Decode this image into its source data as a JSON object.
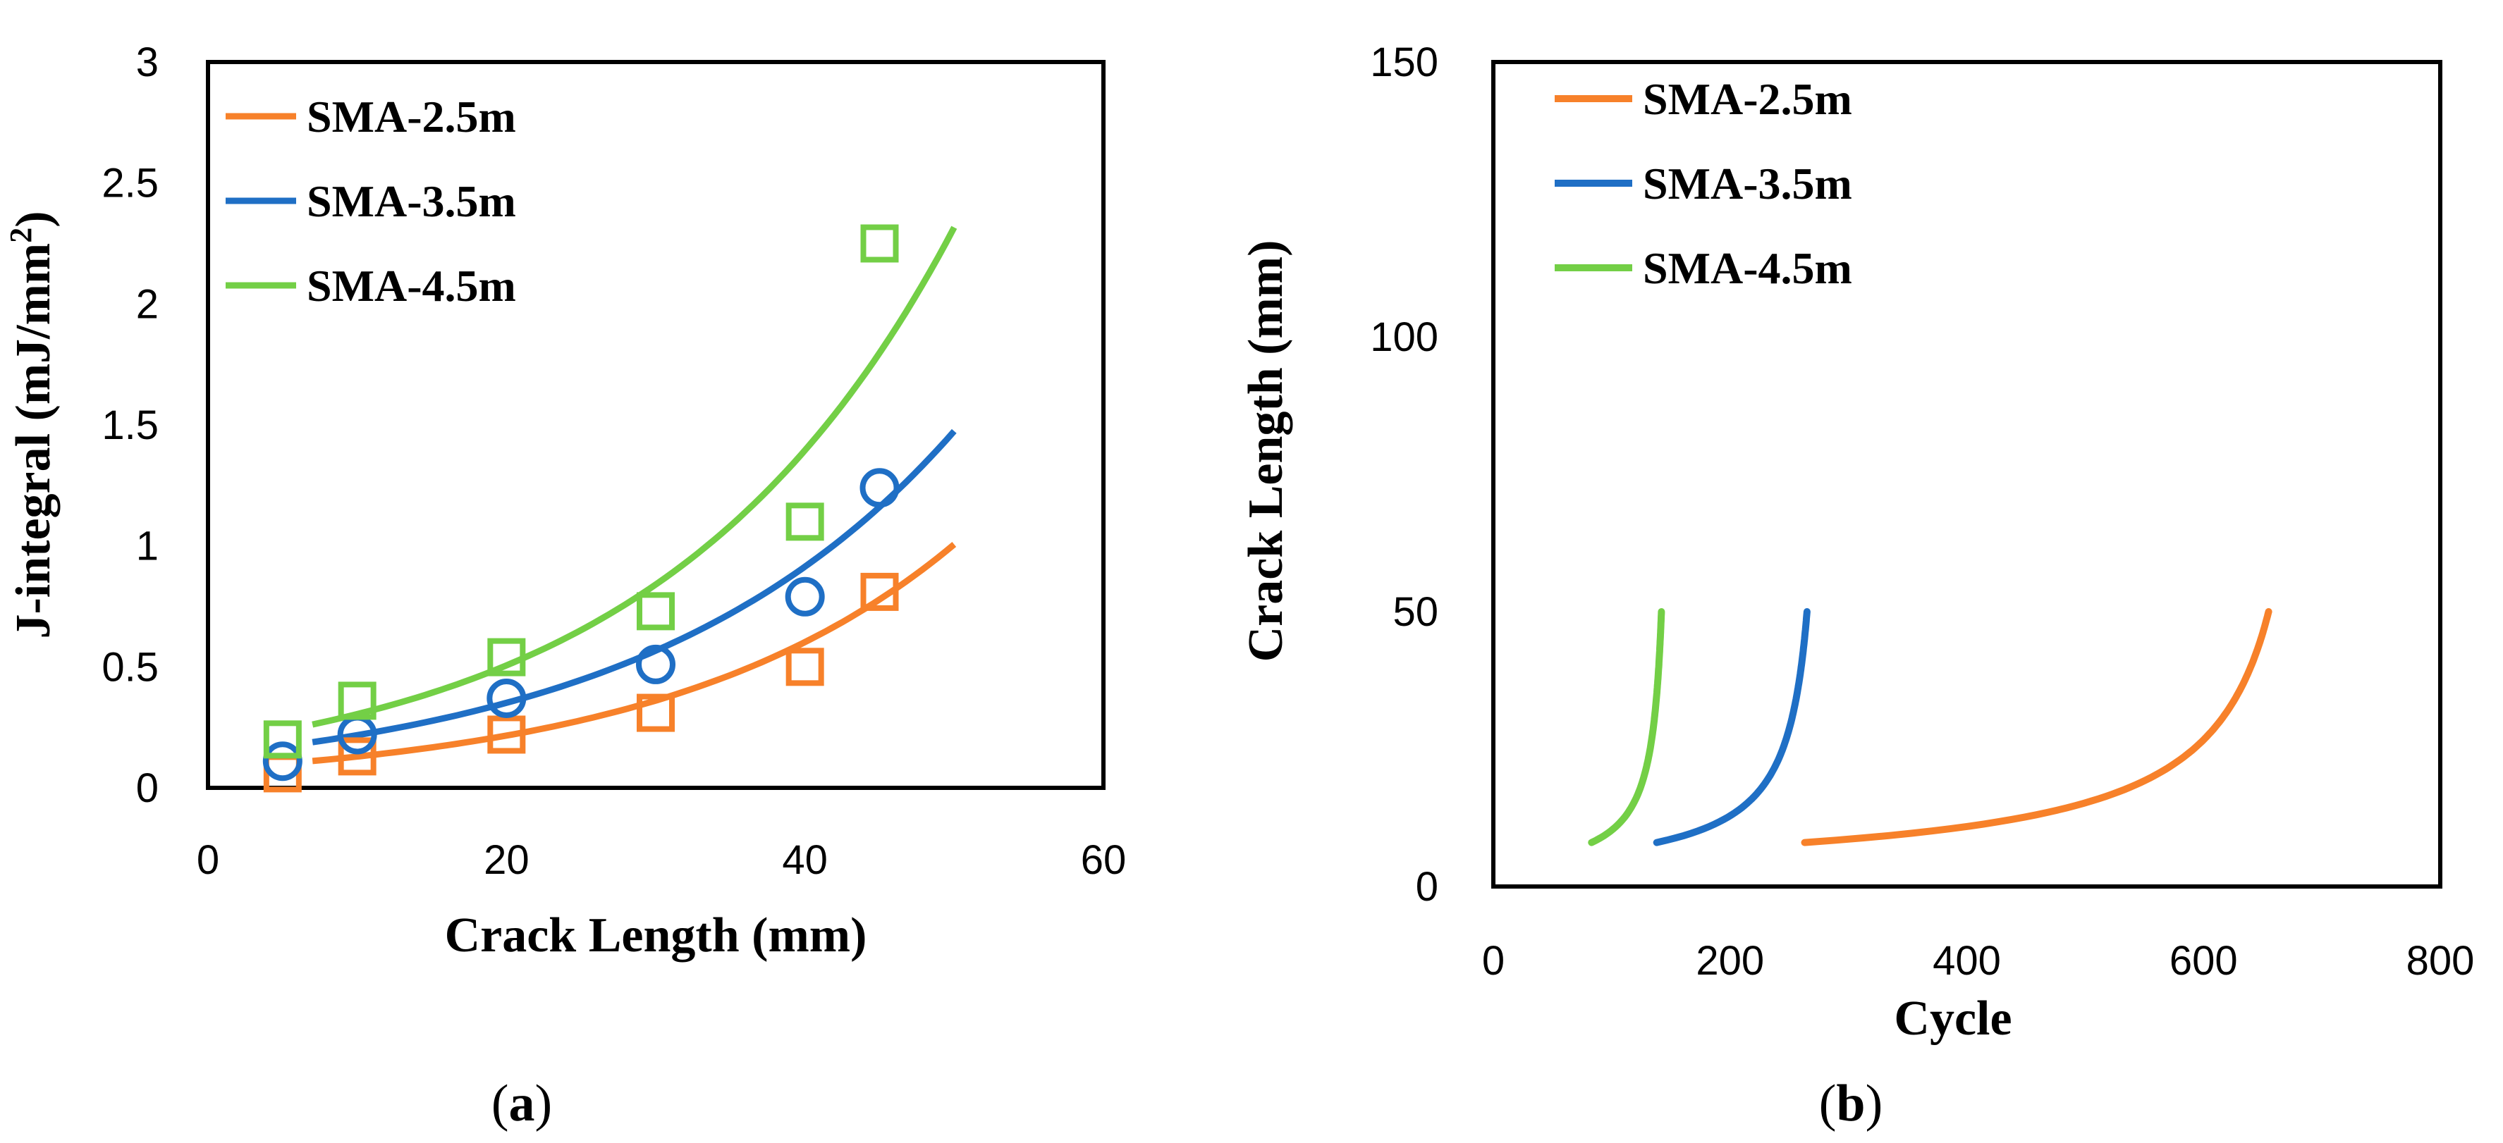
{
  "colors": {
    "orange": "#F7812A",
    "blue": "#1F6FC5",
    "green": "#73CF46"
  },
  "chart_data": [
    {
      "id": "a",
      "type": "scatter",
      "caption_letter": "a",
      "xlabel": "Crack Length (mm)",
      "ylabel": "J-integral (mJ/mm",
      "ylabel_sup": "2",
      "ylabel_close": ")",
      "xlim": [
        0,
        60
      ],
      "ylim": [
        0,
        3
      ],
      "xticks": [
        "0",
        "20",
        "40",
        "60"
      ],
      "xtick_values": [
        0,
        20,
        40,
        60
      ],
      "yticks": [
        "0",
        "0.5",
        "1",
        "1.5",
        "2",
        "2.5",
        "3"
      ],
      "ytick_values": [
        0,
        0.5,
        1,
        1.5,
        2,
        2.5,
        3
      ],
      "legend_position": "top-left",
      "series": [
        {
          "name": "SMA-2.5m",
          "color": "orange",
          "marker": "square",
          "points": [
            [
              5,
              0.06
            ],
            [
              10,
              0.13
            ],
            [
              20,
              0.22
            ],
            [
              30,
              0.31
            ],
            [
              40,
              0.5
            ],
            [
              45,
              0.81
            ]
          ],
          "fit": {
            "kind": "exponential",
            "a": 0.0774,
            "b": 0.0513,
            "xmin": 7,
            "xmax": 50
          }
        },
        {
          "name": "SMA-3.5m",
          "color": "blue",
          "marker": "circle",
          "points": [
            [
              5,
              0.11
            ],
            [
              10,
              0.22
            ],
            [
              20,
              0.37
            ],
            [
              30,
              0.51
            ],
            [
              40,
              0.79
            ],
            [
              45,
              1.24
            ]
          ],
          "fit": {
            "kind": "exponential",
            "a": 0.1351,
            "b": 0.0478,
            "xmin": 7,
            "xmax": 50
          }
        },
        {
          "name": "SMA-4.5m",
          "color": "green",
          "marker": "square",
          "points": [
            [
              5,
              0.2
            ],
            [
              10,
              0.36
            ],
            [
              20,
              0.54
            ],
            [
              30,
              0.73
            ],
            [
              40,
              1.1
            ],
            [
              45,
              2.25
            ]
          ],
          "fit": {
            "kind": "exponential",
            "a": 0.1836,
            "b": 0.0507,
            "xmin": 7,
            "xmax": 50
          }
        }
      ]
    },
    {
      "id": "b",
      "type": "line",
      "caption_letter": "b",
      "xlabel": "Cycle",
      "ylabel": "Crack Length (mm)",
      "xlim": [
        0,
        800
      ],
      "ylim": [
        0,
        150
      ],
      "xticks": [
        "0",
        "200",
        "400",
        "600",
        "800"
      ],
      "xtick_values": [
        0,
        200,
        400,
        600,
        800
      ],
      "yticks": [
        "0",
        "50",
        "100",
        "150"
      ],
      "ytick_values": [
        0,
        50,
        100,
        150
      ],
      "legend_position": "top-left",
      "series": [
        {
          "name": "SMA-2.5m",
          "color": "orange",
          "curve": {
            "a_start": 8,
            "a_end": 50,
            "cycle_start": 263,
            "cycle_end": 655,
            "exponent": 2.2
          }
        },
        {
          "name": "SMA-3.5m",
          "color": "blue",
          "curve": {
            "a_start": 8,
            "a_end": 50,
            "cycle_start": 138,
            "cycle_end": 265,
            "exponent": 2.2
          }
        },
        {
          "name": "SMA-4.5m",
          "color": "green",
          "curve": {
            "a_start": 8,
            "a_end": 50,
            "cycle_start": 83,
            "cycle_end": 142,
            "exponent": 2.2
          }
        }
      ]
    }
  ]
}
